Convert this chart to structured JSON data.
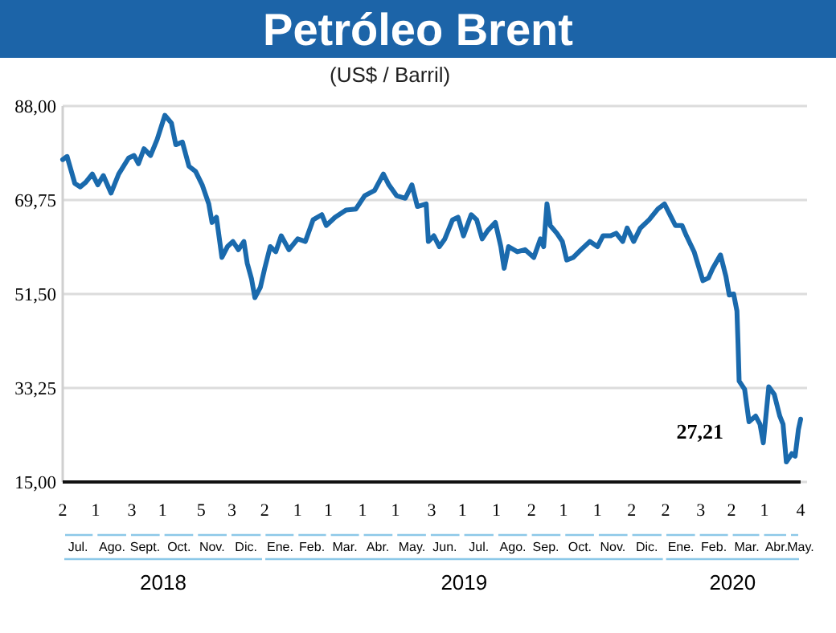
{
  "chart_data": {
    "type": "line",
    "title": "Petróleo Brent",
    "subtitle": "(US$ / Barril)",
    "x": [
      "2018-07-02",
      "2018-07-06",
      "2018-07-13",
      "2018-07-18",
      "2018-07-23",
      "2018-07-29",
      "2018-08-03",
      "2018-08-08",
      "2018-08-15",
      "2018-08-22",
      "2018-08-31",
      "2018-09-05",
      "2018-09-09",
      "2018-09-14",
      "2018-09-20",
      "2018-09-26",
      "2018-10-03",
      "2018-10-09",
      "2018-10-13",
      "2018-10-19",
      "2018-10-25",
      "2018-10-31",
      "2018-11-06",
      "2018-11-12",
      "2018-11-15",
      "2018-11-19",
      "2018-11-24",
      "2018-11-29",
      "2018-12-04",
      "2018-12-09",
      "2018-12-14",
      "2018-12-17",
      "2018-12-21",
      "2018-12-24",
      "2018-12-29",
      "2019-01-02",
      "2019-01-07",
      "2019-01-12",
      "2019-01-17",
      "2019-01-24",
      "2019-02-01",
      "2019-02-08",
      "2019-02-15",
      "2019-02-23",
      "2019-02-27",
      "2019-03-07",
      "2019-03-17",
      "2019-03-26",
      "2019-04-03",
      "2019-04-12",
      "2019-04-20",
      "2019-04-25",
      "2019-05-02",
      "2019-05-10",
      "2019-05-16",
      "2019-05-21",
      "2019-05-29",
      "2019-05-31",
      "2019-06-05",
      "2019-06-10",
      "2019-06-15",
      "2019-06-22",
      "2019-06-27",
      "2019-07-02",
      "2019-07-09",
      "2019-07-14",
      "2019-07-19",
      "2019-07-24",
      "2019-07-31",
      "2019-08-05",
      "2019-08-08",
      "2019-08-12",
      "2019-08-20",
      "2019-08-27",
      "2019-09-04",
      "2019-09-10",
      "2019-09-13",
      "2019-09-16",
      "2019-09-19",
      "2019-09-25",
      "2019-09-30",
      "2019-10-04",
      "2019-10-10",
      "2019-10-17",
      "2019-10-25",
      "2019-11-01",
      "2019-11-06",
      "2019-11-13",
      "2019-11-18",
      "2019-11-24",
      "2019-11-28",
      "2019-12-04",
      "2019-12-10",
      "2019-12-18",
      "2019-12-26",
      "2020-01-01",
      "2020-01-06",
      "2020-01-11",
      "2020-01-17",
      "2020-01-21",
      "2020-01-28",
      "2020-02-05",
      "2020-02-10",
      "2020-02-14",
      "2020-02-21",
      "2020-02-26",
      "2020-02-29",
      "2020-03-04",
      "2020-03-07",
      "2020-03-08",
      "2020-03-09",
      "2020-03-14",
      "2020-03-18",
      "2020-03-24",
      "2020-03-28",
      "2020-03-31",
      "2020-04-05",
      "2020-04-10",
      "2020-04-15",
      "2020-04-18",
      "2020-04-21",
      "2020-04-26",
      "2020-04-29",
      "2020-05-02",
      "2020-05-04"
    ],
    "series": [
      {
        "color": "#1a6aad",
        "values": [
          77.6,
          78.2,
          73.0,
          72.3,
          73.2,
          74.8,
          72.7,
          74.5,
          71.1,
          74.8,
          77.9,
          78.4,
          76.8,
          79.7,
          78.4,
          81.5,
          86.2,
          84.7,
          80.5,
          81.0,
          76.3,
          75.3,
          72.7,
          69.0,
          65.4,
          66.4,
          58.6,
          60.7,
          61.7,
          60.1,
          61.7,
          57.5,
          54.4,
          50.8,
          52.8,
          56.5,
          60.7,
          59.7,
          62.8,
          60.1,
          62.2,
          61.7,
          65.9,
          66.9,
          64.8,
          66.4,
          67.8,
          68.0,
          70.6,
          71.6,
          74.8,
          72.7,
          70.6,
          70.1,
          72.7,
          68.5,
          69.0,
          61.7,
          62.8,
          60.7,
          62.2,
          65.9,
          66.4,
          62.8,
          66.9,
          65.9,
          62.2,
          63.8,
          65.4,
          60.7,
          56.5,
          60.7,
          59.7,
          60.1,
          58.6,
          62.2,
          60.7,
          69.0,
          64.8,
          63.3,
          61.7,
          58.1,
          58.6,
          60.1,
          61.7,
          60.7,
          62.8,
          62.8,
          63.3,
          61.7,
          64.3,
          61.7,
          64.3,
          65.9,
          68.0,
          69.0,
          66.9,
          64.8,
          64.8,
          62.8,
          59.7,
          54.1,
          54.6,
          56.5,
          59.1,
          54.9,
          51.3,
          51.5,
          48.2,
          41.9,
          34.6,
          33.0,
          26.7,
          27.8,
          26.2,
          22.6,
          33.5,
          32.0,
          27.8,
          26.2,
          18.9,
          20.5,
          20.0,
          25.2,
          27.2
        ]
      }
    ],
    "xlim": [
      "2018-07-02",
      "2020-05-04"
    ],
    "xticks": [
      {
        "value": "2018-07-02",
        "label": "2"
      },
      {
        "value": "2018-08-01",
        "label": "1"
      },
      {
        "value": "2018-09-03",
        "label": "3"
      },
      {
        "value": "2018-10-01",
        "label": "1"
      },
      {
        "value": "2018-11-05",
        "label": "5"
      },
      {
        "value": "2018-12-03",
        "label": "3"
      },
      {
        "value": "2019-01-02",
        "label": "2"
      },
      {
        "value": "2019-02-01",
        "label": "1"
      },
      {
        "value": "2019-03-01",
        "label": "1"
      },
      {
        "value": "2019-04-01",
        "label": "1"
      },
      {
        "value": "2019-05-01",
        "label": "1"
      },
      {
        "value": "2019-06-03",
        "label": "3"
      },
      {
        "value": "2019-07-01",
        "label": "1"
      },
      {
        "value": "2019-08-01",
        "label": "1"
      },
      {
        "value": "2019-09-02",
        "label": "2"
      },
      {
        "value": "2019-10-01",
        "label": "1"
      },
      {
        "value": "2019-11-01",
        "label": "1"
      },
      {
        "value": "2019-12-02",
        "label": "2"
      },
      {
        "value": "2020-01-02",
        "label": "2"
      },
      {
        "value": "2020-02-03",
        "label": "3"
      },
      {
        "value": "2020-03-02",
        "label": "2"
      },
      {
        "value": "2020-04-01",
        "label": "1"
      },
      {
        "value": "2020-05-04",
        "label": "4"
      }
    ],
    "x2lim": [
      "2018-07-02",
      "2020-05-04"
    ],
    "x2ticks": [
      {
        "value": "2018-07-16",
        "label": "Jul."
      },
      {
        "value": "2018-08-16",
        "label": "Ago."
      },
      {
        "value": "2018-09-15",
        "label": "Sept."
      },
      {
        "value": "2018-10-16",
        "label": "Oct."
      },
      {
        "value": "2018-11-15",
        "label": "Nov."
      },
      {
        "value": "2018-12-16",
        "label": "Dic."
      },
      {
        "value": "2019-01-16",
        "label": "Ene."
      },
      {
        "value": "2019-02-14",
        "label": "Feb."
      },
      {
        "value": "2019-03-16",
        "label": "Mar."
      },
      {
        "value": "2019-04-15",
        "label": "Abr."
      },
      {
        "value": "2019-05-16",
        "label": "May."
      },
      {
        "value": "2019-06-15",
        "label": "Jun."
      },
      {
        "value": "2019-07-16",
        "label": "Jul."
      },
      {
        "value": "2019-08-16",
        "label": "Ago."
      },
      {
        "value": "2019-09-15",
        "label": "Sep."
      },
      {
        "value": "2019-10-16",
        "label": "Oct."
      },
      {
        "value": "2019-11-15",
        "label": "Nov."
      },
      {
        "value": "2019-12-16",
        "label": "Dic."
      },
      {
        "value": "2020-01-16",
        "label": "Ene."
      },
      {
        "value": "2020-02-15",
        "label": "Feb."
      },
      {
        "value": "2020-03-16",
        "label": "Mar."
      },
      {
        "value": "2020-04-12",
        "label": "Abr."
      },
      {
        "value": "2020-05-04",
        "label": "May."
      }
    ],
    "ylim": [
      15,
      88
    ],
    "yticks": [
      {
        "value": 15,
        "label": "15,00"
      },
      {
        "value": 33.25,
        "label": "33,25"
      },
      {
        "value": 51.5,
        "label": "51,50"
      },
      {
        "value": 69.75,
        "label": "69,75"
      },
      {
        "value": 88,
        "label": "88,00"
      }
    ],
    "grid": "y",
    "marker": "none",
    "line_style": "solid",
    "annotations": [
      "27,21",
      "2018",
      "2019",
      "2020"
    ]
  }
}
